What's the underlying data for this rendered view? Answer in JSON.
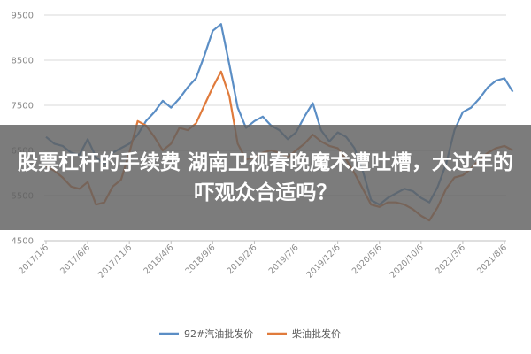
{
  "overlay": {
    "title": "股票杠杆的手续费 湖南卫视春晚魔术遭吐槽，大过年的吓观众合适吗？"
  },
  "chart_data": {
    "type": "line",
    "title": "",
    "xlabel": "",
    "ylabel": "",
    "ylim": [
      4500,
      9500
    ],
    "yticks": [
      "4500",
      "5500",
      "6500",
      "7500",
      "8500",
      "9500"
    ],
    "xticks": [
      "2017/1/6",
      "2017/6/6",
      "2017/11/6",
      "2018/4/6",
      "2018/9/6",
      "2019/2/6",
      "2019/7/6",
      "2019/12/6",
      "2020/5/6",
      "2020/10/6",
      "2021/3/6",
      "2021/8/6"
    ],
    "grid": true,
    "legend_position": "bottom",
    "series": [
      {
        "name": "92#汽油批发价",
        "color": "#5b8ec5",
        "points": [
          [
            "2017/1/6",
            6800
          ],
          [
            "2017/2/6",
            6650
          ],
          [
            "2017/3/6",
            6600
          ],
          [
            "2017/4/6",
            6450
          ],
          [
            "2017/5/6",
            6400
          ],
          [
            "2017/6/6",
            6750
          ],
          [
            "2017/7/6",
            6350
          ],
          [
            "2017/8/6",
            6200
          ],
          [
            "2017/9/6",
            6450
          ],
          [
            "2017/10/6",
            6550
          ],
          [
            "2017/11/6",
            6650
          ],
          [
            "2017/12/6",
            6850
          ],
          [
            "2018/1/6",
            7150
          ],
          [
            "2018/2/6",
            7350
          ],
          [
            "2018/3/6",
            7600
          ],
          [
            "2018/4/6",
            7450
          ],
          [
            "2018/5/6",
            7650
          ],
          [
            "2018/6/6",
            7900
          ],
          [
            "2018/7/6",
            8100
          ],
          [
            "2018/8/6",
            8600
          ],
          [
            "2018/9/6",
            9150
          ],
          [
            "2018/10/6",
            9300
          ],
          [
            "2018/11/6",
            8400
          ],
          [
            "2018/12/6",
            7450
          ],
          [
            "2019/1/6",
            7000
          ],
          [
            "2019/2/6",
            7150
          ],
          [
            "2019/3/6",
            7250
          ],
          [
            "2019/4/6",
            7050
          ],
          [
            "2019/5/6",
            6950
          ],
          [
            "2019/6/6",
            6750
          ],
          [
            "2019/7/6",
            6900
          ],
          [
            "2019/8/6",
            7250
          ],
          [
            "2019/9/6",
            7550
          ],
          [
            "2019/10/6",
            6950
          ],
          [
            "2019/11/6",
            6700
          ],
          [
            "2019/12/6",
            6900
          ],
          [
            "2020/1/6",
            6800
          ],
          [
            "2020/2/6",
            6550
          ],
          [
            "2020/3/6",
            6050
          ],
          [
            "2020/4/6",
            5400
          ],
          [
            "2020/5/6",
            5300
          ],
          [
            "2020/6/6",
            5450
          ],
          [
            "2020/7/6",
            5550
          ],
          [
            "2020/8/6",
            5650
          ],
          [
            "2020/9/6",
            5600
          ],
          [
            "2020/10/6",
            5450
          ],
          [
            "2020/11/6",
            5350
          ],
          [
            "2020/12/6",
            5700
          ],
          [
            "2021/1/6",
            6200
          ],
          [
            "2021/2/6",
            6950
          ],
          [
            "2021/3/6",
            7350
          ],
          [
            "2021/4/6",
            7450
          ],
          [
            "2021/5/6",
            7650
          ],
          [
            "2021/6/6",
            7900
          ],
          [
            "2021/7/6",
            8050
          ],
          [
            "2021/8/6",
            8100
          ],
          [
            "2021/9/6",
            7800
          ]
        ]
      },
      {
        "name": "柴油批发价",
        "color": "#e07b3c",
        "points": [
          [
            "2017/1/6",
            6150
          ],
          [
            "2017/2/6",
            6050
          ],
          [
            "2017/3/6",
            5900
          ],
          [
            "2017/4/6",
            5700
          ],
          [
            "2017/5/6",
            5650
          ],
          [
            "2017/6/6",
            5800
          ],
          [
            "2017/7/6",
            5300
          ],
          [
            "2017/8/6",
            5350
          ],
          [
            "2017/9/6",
            5700
          ],
          [
            "2017/10/6",
            5850
          ],
          [
            "2017/11/6",
            6450
          ],
          [
            "2017/12/6",
            7150
          ],
          [
            "2018/1/6",
            7050
          ],
          [
            "2018/2/6",
            6800
          ],
          [
            "2018/3/6",
            6500
          ],
          [
            "2018/4/6",
            6650
          ],
          [
            "2018/5/6",
            7000
          ],
          [
            "2018/6/6",
            6950
          ],
          [
            "2018/7/6",
            7100
          ],
          [
            "2018/8/6",
            7500
          ],
          [
            "2018/9/6",
            7900
          ],
          [
            "2018/10/6",
            8250
          ],
          [
            "2018/11/6",
            7700
          ],
          [
            "2018/12/6",
            6650
          ],
          [
            "2019/1/6",
            6300
          ],
          [
            "2019/2/6",
            6350
          ],
          [
            "2019/3/6",
            6450
          ],
          [
            "2019/4/6",
            6500
          ],
          [
            "2019/5/6",
            6450
          ],
          [
            "2019/6/6",
            6350
          ],
          [
            "2019/7/6",
            6500
          ],
          [
            "2019/8/6",
            6650
          ],
          [
            "2019/9/6",
            6850
          ],
          [
            "2019/10/6",
            6700
          ],
          [
            "2019/11/6",
            6600
          ],
          [
            "2019/12/6",
            6550
          ],
          [
            "2020/1/6",
            6300
          ],
          [
            "2020/2/6",
            6000
          ],
          [
            "2020/3/6",
            5650
          ],
          [
            "2020/4/6",
            5300
          ],
          [
            "2020/5/6",
            5250
          ],
          [
            "2020/6/6",
            5350
          ],
          [
            "2020/7/6",
            5350
          ],
          [
            "2020/8/6",
            5300
          ],
          [
            "2020/9/6",
            5200
          ],
          [
            "2020/10/6",
            5050
          ],
          [
            "2020/11/6",
            4950
          ],
          [
            "2020/12/6",
            5250
          ],
          [
            "2021/1/6",
            5650
          ],
          [
            "2021/2/6",
            5900
          ],
          [
            "2021/3/6",
            5950
          ],
          [
            "2021/4/6",
            6100
          ],
          [
            "2021/5/6",
            6300
          ],
          [
            "2021/6/6",
            6450
          ],
          [
            "2021/7/6",
            6550
          ],
          [
            "2021/8/6",
            6600
          ],
          [
            "2021/9/6",
            6500
          ]
        ]
      }
    ]
  }
}
